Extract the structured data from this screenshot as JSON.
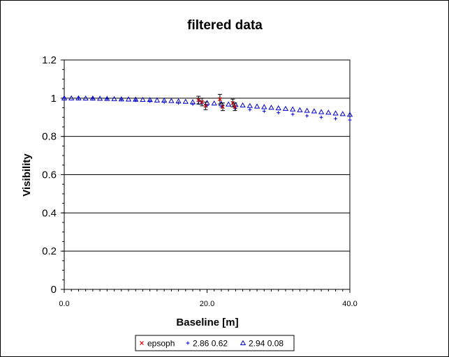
{
  "chart_data": {
    "type": "scatter",
    "title": "filtered data",
    "xlabel": "Baseline [m]",
    "ylabel": "Visibility",
    "xlim": [
      0,
      40
    ],
    "ylim": [
      0,
      1.2
    ],
    "x_ticks": [
      {
        "value": 0,
        "label": "0.0"
      },
      {
        "value": 20,
        "label": "20.0"
      },
      {
        "value": 40,
        "label": "40.0"
      }
    ],
    "y_ticks": [
      {
        "value": 0,
        "label": "0"
      },
      {
        "value": 0.2,
        "label": "0.2"
      },
      {
        "value": 0.4,
        "label": "0.4"
      },
      {
        "value": 0.6,
        "label": "0.6"
      },
      {
        "value": 0.8,
        "label": "0.8"
      },
      {
        "value": 1.0,
        "label": "1"
      },
      {
        "value": 1.2,
        "label": "1.2"
      }
    ],
    "grid": "horizontal",
    "legend_position": "bottom",
    "series": [
      {
        "name": "epsoph",
        "marker": "x",
        "color": "#cc0000",
        "points": [
          {
            "x": 18.8,
            "y": 0.99,
            "err": 0.02
          },
          {
            "x": 19.3,
            "y": 0.98,
            "err": 0.02
          },
          {
            "x": 19.8,
            "y": 0.96,
            "err": 0.02
          },
          {
            "x": 21.8,
            "y": 0.995,
            "err": 0.025
          },
          {
            "x": 22.2,
            "y": 0.955,
            "err": 0.02
          },
          {
            "x": 23.6,
            "y": 0.975,
            "err": 0.02
          },
          {
            "x": 23.9,
            "y": 0.955,
            "err": 0.02
          }
        ]
      },
      {
        "name": "2.86 0.62",
        "marker": "plus",
        "color": "#0000cc",
        "points": [
          {
            "x": 0,
            "y": 1.0
          },
          {
            "x": 2,
            "y": 0.9995
          },
          {
            "x": 4,
            "y": 0.998
          },
          {
            "x": 6,
            "y": 0.996
          },
          {
            "x": 8,
            "y": 0.993
          },
          {
            "x": 10,
            "y": 0.989
          },
          {
            "x": 12,
            "y": 0.985
          },
          {
            "x": 14,
            "y": 0.98
          },
          {
            "x": 16,
            "y": 0.975
          },
          {
            "x": 18,
            "y": 0.969
          },
          {
            "x": 20,
            "y": 0.962
          },
          {
            "x": 22,
            "y": 0.955
          },
          {
            "x": 24,
            "y": 0.948
          },
          {
            "x": 26,
            "y": 0.94
          },
          {
            "x": 28,
            "y": 0.932
          },
          {
            "x": 30,
            "y": 0.924
          },
          {
            "x": 32,
            "y": 0.916
          },
          {
            "x": 34,
            "y": 0.908
          },
          {
            "x": 36,
            "y": 0.9
          },
          {
            "x": 38,
            "y": 0.893
          },
          {
            "x": 40,
            "y": 0.886
          }
        ]
      },
      {
        "name": "2.94 0.08",
        "marker": "triangle",
        "color": "#0000cc",
        "points": [
          {
            "x": 0,
            "y": 1.0
          },
          {
            "x": 1,
            "y": 1.0
          },
          {
            "x": 2,
            "y": 1.0
          },
          {
            "x": 3,
            "y": 0.999
          },
          {
            "x": 4,
            "y": 0.999
          },
          {
            "x": 5,
            "y": 0.998
          },
          {
            "x": 6,
            "y": 0.997
          },
          {
            "x": 7,
            "y": 0.996
          },
          {
            "x": 8,
            "y": 0.995
          },
          {
            "x": 9,
            "y": 0.994
          },
          {
            "x": 10,
            "y": 0.993
          },
          {
            "x": 11,
            "y": 0.992
          },
          {
            "x": 12,
            "y": 0.991
          },
          {
            "x": 13,
            "y": 0.989
          },
          {
            "x": 14,
            "y": 0.988
          },
          {
            "x": 15,
            "y": 0.986
          },
          {
            "x": 16,
            "y": 0.984
          },
          {
            "x": 17,
            "y": 0.982
          },
          {
            "x": 18,
            "y": 0.98
          },
          {
            "x": 19,
            "y": 0.978
          },
          {
            "x": 20,
            "y": 0.976
          },
          {
            "x": 21,
            "y": 0.973
          },
          {
            "x": 22,
            "y": 0.971
          },
          {
            "x": 23,
            "y": 0.968
          },
          {
            "x": 24,
            "y": 0.966
          },
          {
            "x": 25,
            "y": 0.963
          },
          {
            "x": 26,
            "y": 0.96
          },
          {
            "x": 27,
            "y": 0.957
          },
          {
            "x": 28,
            "y": 0.954
          },
          {
            "x": 29,
            "y": 0.951
          },
          {
            "x": 30,
            "y": 0.948
          },
          {
            "x": 31,
            "y": 0.945
          },
          {
            "x": 32,
            "y": 0.942
          },
          {
            "x": 33,
            "y": 0.938
          },
          {
            "x": 34,
            "y": 0.935
          },
          {
            "x": 35,
            "y": 0.932
          },
          {
            "x": 36,
            "y": 0.928
          },
          {
            "x": 37,
            "y": 0.925
          },
          {
            "x": 38,
            "y": 0.921
          },
          {
            "x": 39,
            "y": 0.918
          },
          {
            "x": 40,
            "y": 0.914
          }
        ]
      }
    ]
  }
}
